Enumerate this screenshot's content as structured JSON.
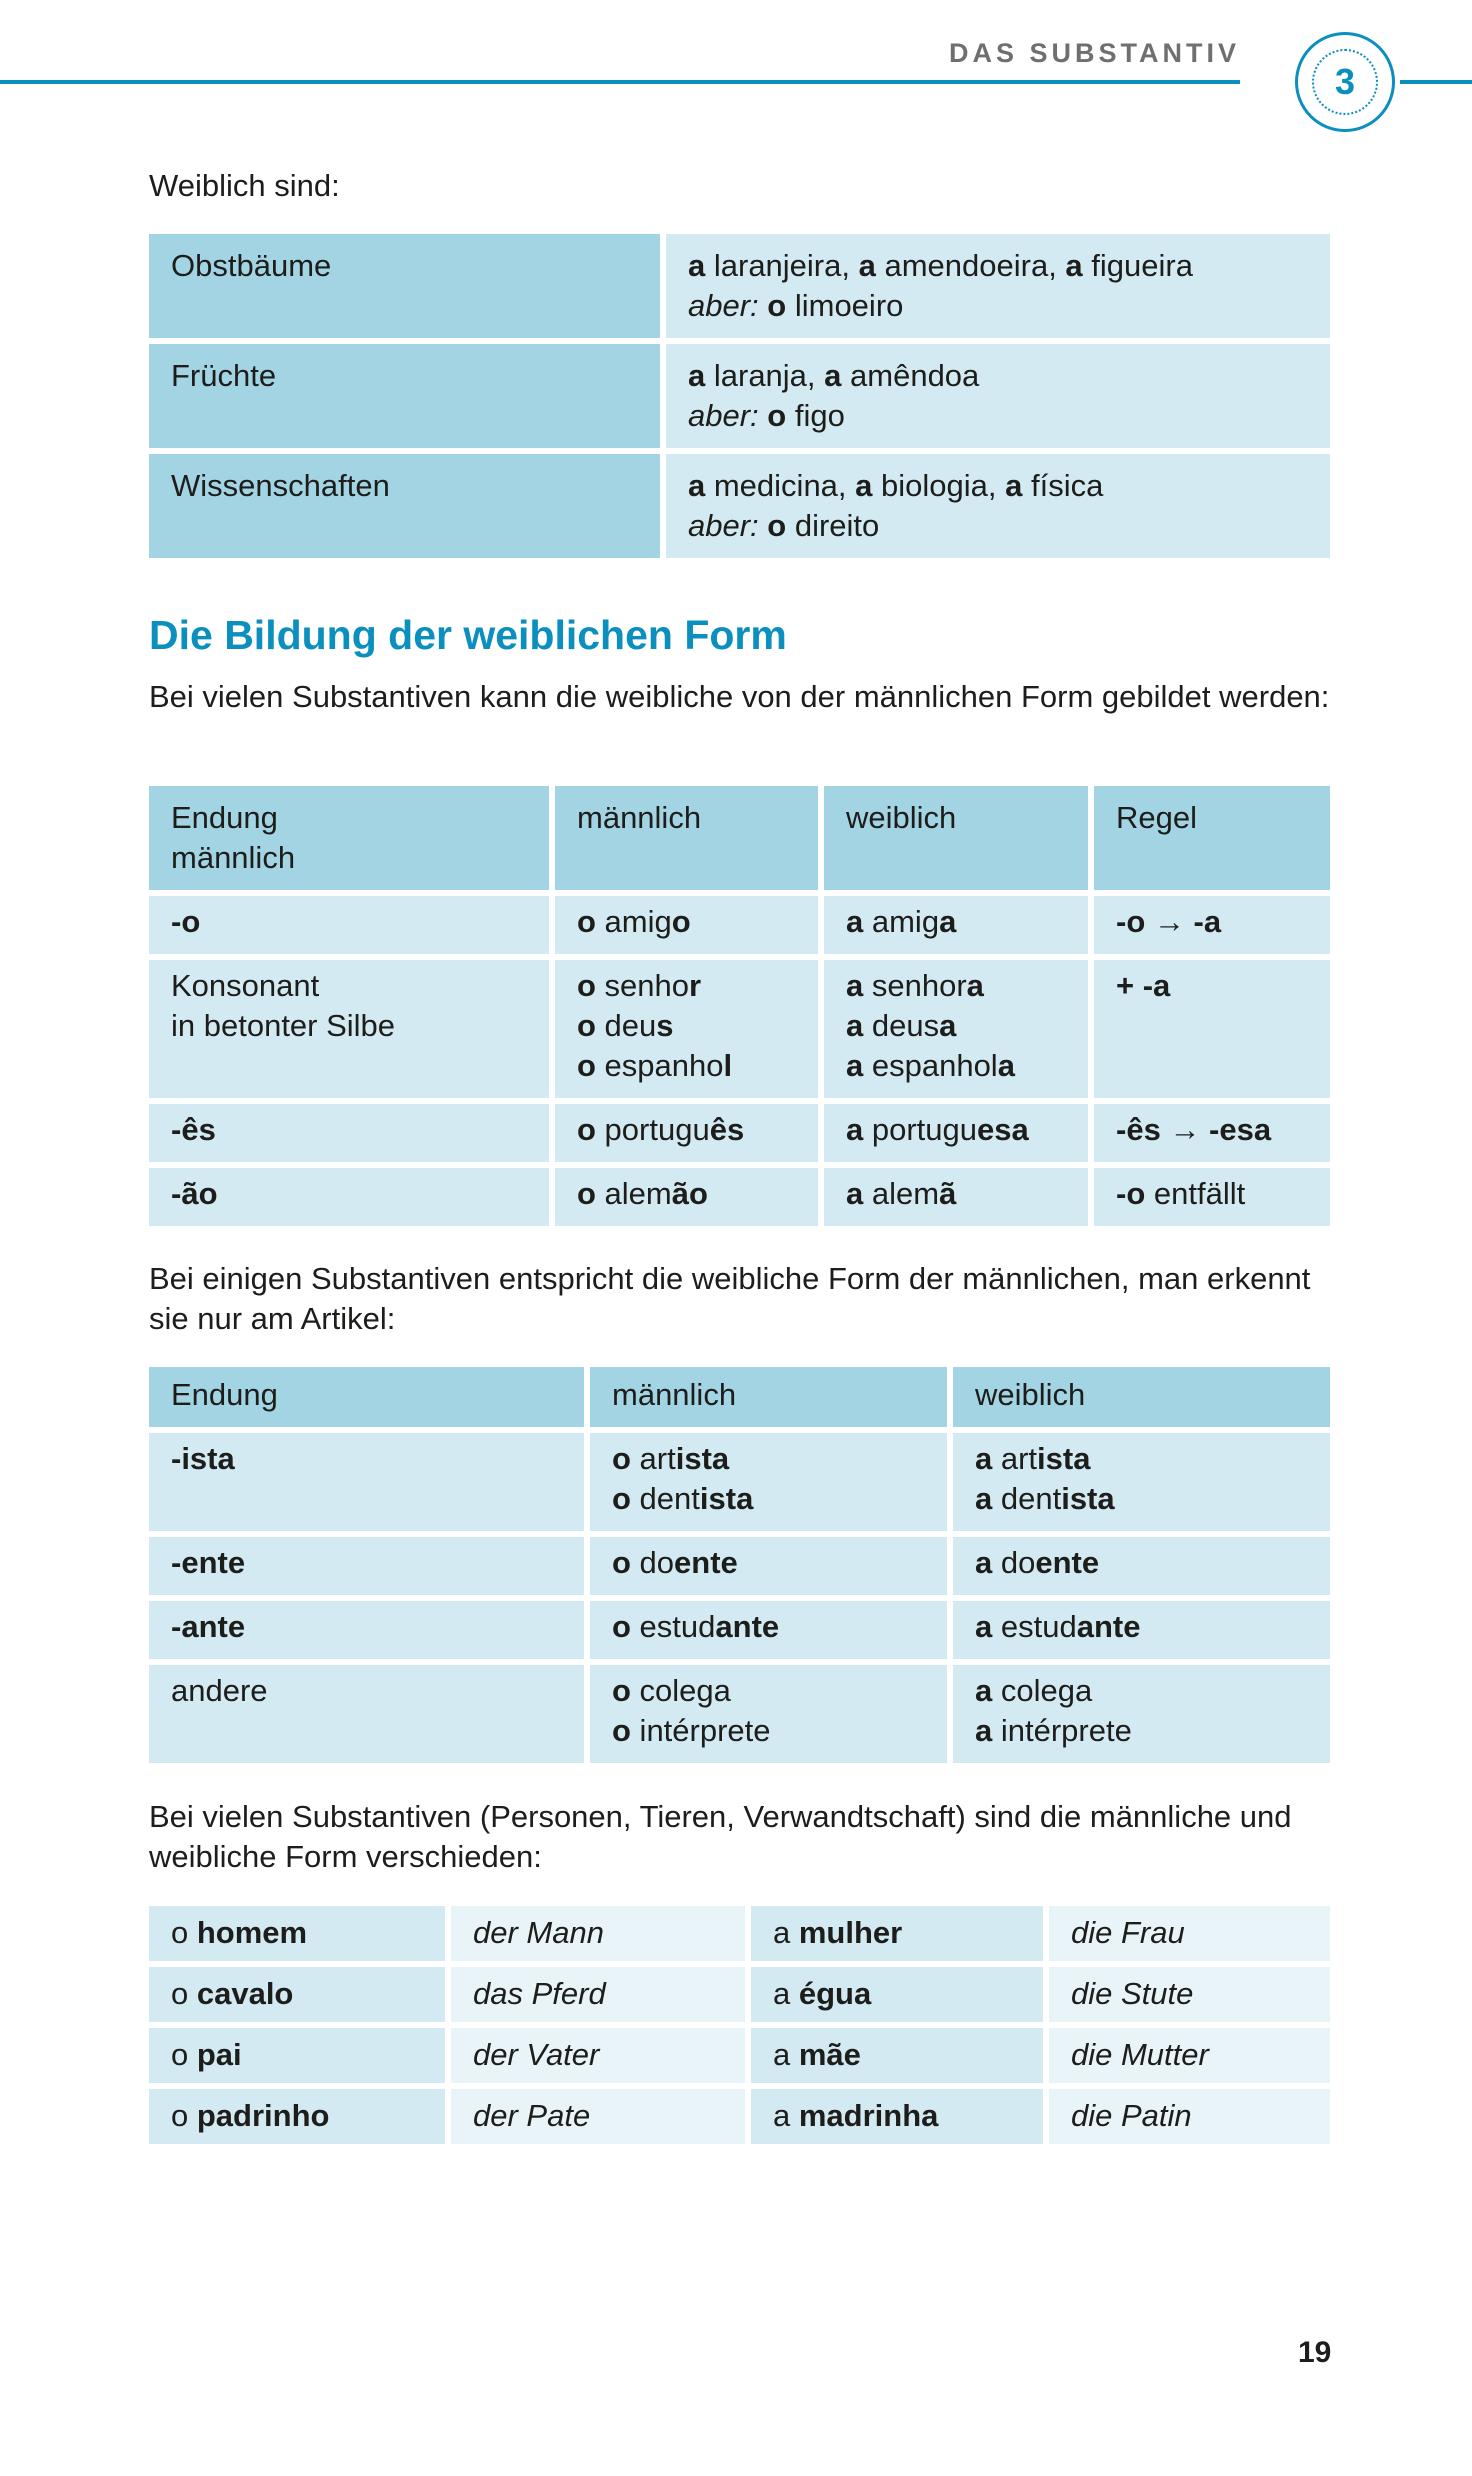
{
  "header": {
    "section_title": "DAS SUBSTANTIV",
    "chapter_number": "3",
    "accent_color": "#0a8fbf"
  },
  "intro": "Weiblich sind:",
  "table1": {
    "rows": [
      {
        "label": "Obstbäume",
        "lines": [
          [
            [
              "a",
              "b"
            ],
            [
              " laranjeira, ",
              ""
            ],
            [
              "a",
              "b"
            ],
            [
              " amendoeira, ",
              ""
            ],
            [
              "a",
              "b"
            ],
            [
              " figueira",
              ""
            ]
          ],
          [
            [
              "aber:",
              "i"
            ],
            [
              " ",
              ""
            ],
            [
              "o",
              "b"
            ],
            [
              " limoeiro",
              ""
            ]
          ]
        ]
      },
      {
        "label": "Früchte",
        "lines": [
          [
            [
              "a",
              "b"
            ],
            [
              " laranja, ",
              ""
            ],
            [
              "a",
              "b"
            ],
            [
              " amêndoa",
              ""
            ]
          ],
          [
            [
              "aber:",
              "i"
            ],
            [
              " ",
              ""
            ],
            [
              "o",
              "b"
            ],
            [
              " figo",
              ""
            ]
          ]
        ]
      },
      {
        "label": "Wissenschaften",
        "lines": [
          [
            [
              "a",
              "b"
            ],
            [
              " medicina, ",
              ""
            ],
            [
              "a",
              "b"
            ],
            [
              " biologia, ",
              ""
            ],
            [
              "a",
              "b"
            ],
            [
              " física",
              ""
            ]
          ],
          [
            [
              "aber:",
              "i"
            ],
            [
              " ",
              ""
            ],
            [
              "o",
              "b"
            ],
            [
              " direito",
              ""
            ]
          ]
        ]
      }
    ]
  },
  "section_heading": "Die Bildung der weiblichen Form",
  "para1": "Bei vielen Substantiven kann die weibliche von der männlichen Form gebildet werden:",
  "table2": {
    "headers": [
      "Endung\nmännlich",
      "männlich",
      "weiblich",
      "Regel"
    ],
    "rows": [
      [
        [
          [
            [
              "-o",
              "b"
            ]
          ]
        ],
        [
          [
            [
              "o",
              "b"
            ],
            [
              " amig",
              ""
            ],
            [
              "o",
              "b"
            ]
          ]
        ],
        [
          [
            [
              "a",
              "b"
            ],
            [
              " amig",
              ""
            ],
            [
              "a",
              "b"
            ]
          ]
        ],
        [
          [
            [
              "-o",
              "b"
            ],
            [
              " → ",
              ""
            ],
            [
              "-a",
              "b"
            ]
          ]
        ]
      ],
      [
        [
          [
            [
              "Konsonant",
              ""
            ]
          ],
          [
            [
              "in betonter Silbe",
              ""
            ]
          ]
        ],
        [
          [
            [
              "o",
              "b"
            ],
            [
              " senho",
              ""
            ],
            [
              "r",
              "b"
            ]
          ],
          [
            [
              "o",
              "b"
            ],
            [
              " deu",
              ""
            ],
            [
              "s",
              "b"
            ]
          ],
          [
            [
              "o",
              "b"
            ],
            [
              " espanho",
              ""
            ],
            [
              "l",
              "b"
            ]
          ]
        ],
        [
          [
            [
              "a",
              "b"
            ],
            [
              " senhor",
              ""
            ],
            [
              "a",
              "b"
            ]
          ],
          [
            [
              "a",
              "b"
            ],
            [
              " deus",
              ""
            ],
            [
              "a",
              "b"
            ]
          ],
          [
            [
              "a",
              "b"
            ],
            [
              " espanhol",
              ""
            ],
            [
              "a",
              "b"
            ]
          ]
        ],
        [
          [
            [
              "+ -a",
              "b"
            ]
          ]
        ]
      ],
      [
        [
          [
            [
              "-ês",
              "b"
            ]
          ]
        ],
        [
          [
            [
              "o",
              "b"
            ],
            [
              " portugu",
              ""
            ],
            [
              "ês",
              "b"
            ]
          ]
        ],
        [
          [
            [
              "a",
              "b"
            ],
            [
              " portugu",
              ""
            ],
            [
              "esa",
              "b"
            ]
          ]
        ],
        [
          [
            [
              "-ês",
              "b"
            ],
            [
              " → ",
              ""
            ],
            [
              "-esa",
              "b"
            ]
          ]
        ]
      ],
      [
        [
          [
            [
              "-ão",
              "b"
            ]
          ]
        ],
        [
          [
            [
              "o",
              "b"
            ],
            [
              " alem",
              ""
            ],
            [
              "ão",
              "b"
            ]
          ]
        ],
        [
          [
            [
              "a",
              "b"
            ],
            [
              " alem",
              ""
            ],
            [
              "ã",
              "b"
            ]
          ]
        ],
        [
          [
            [
              "-o",
              "b"
            ],
            [
              " entfällt",
              ""
            ]
          ]
        ]
      ]
    ]
  },
  "para2": "Bei einigen Substantiven entspricht die weibliche Form der männlichen, man erkennt sie nur am Artikel:",
  "table3": {
    "headers": [
      "Endung",
      "männlich",
      "weiblich"
    ],
    "rows": [
      [
        [
          [
            [
              "-ista",
              "b"
            ]
          ]
        ],
        [
          [
            [
              "o",
              "b"
            ],
            [
              " art",
              ""
            ],
            [
              "ista",
              "b"
            ]
          ],
          [
            [
              "o",
              "b"
            ],
            [
              " dent",
              ""
            ],
            [
              "ista",
              "b"
            ]
          ]
        ],
        [
          [
            [
              "a",
              "b"
            ],
            [
              " art",
              ""
            ],
            [
              "ista",
              "b"
            ]
          ],
          [
            [
              "a",
              "b"
            ],
            [
              " dent",
              ""
            ],
            [
              "ista",
              "b"
            ]
          ]
        ]
      ],
      [
        [
          [
            [
              "-ente",
              "b"
            ]
          ]
        ],
        [
          [
            [
              "o",
              "b"
            ],
            [
              " do",
              ""
            ],
            [
              "ente",
              "b"
            ]
          ]
        ],
        [
          [
            [
              "a",
              "b"
            ],
            [
              " do",
              ""
            ],
            [
              "ente",
              "b"
            ]
          ]
        ]
      ],
      [
        [
          [
            [
              "-ante",
              "b"
            ]
          ]
        ],
        [
          [
            [
              "o",
              "b"
            ],
            [
              " estud",
              ""
            ],
            [
              "ante",
              "b"
            ]
          ]
        ],
        [
          [
            [
              "a",
              "b"
            ],
            [
              " estud",
              ""
            ],
            [
              "ante",
              "b"
            ]
          ]
        ]
      ],
      [
        [
          [
            [
              "andere",
              ""
            ]
          ]
        ],
        [
          [
            [
              "o",
              "b"
            ],
            [
              " colega",
              ""
            ]
          ],
          [
            [
              "o",
              "b"
            ],
            [
              " intérprete",
              ""
            ]
          ]
        ],
        [
          [
            [
              "a",
              "b"
            ],
            [
              " colega",
              ""
            ]
          ],
          [
            [
              "a",
              "b"
            ],
            [
              " intérprete",
              ""
            ]
          ]
        ]
      ]
    ]
  },
  "para3": "Bei vielen Substantiven (Personen, Tieren, Verwandtschaft) sind die männliche und weibliche Form verschieden:",
  "table4": {
    "rows": [
      [
        [
          [
            [
              "o ",
              ""
            ],
            [
              "homem",
              "b"
            ]
          ]
        ],
        [
          [
            [
              "der Mann",
              "i"
            ]
          ]
        ],
        [
          [
            [
              "a ",
              ""
            ],
            [
              "mulher",
              "b"
            ]
          ]
        ],
        [
          [
            [
              "die Frau",
              "i"
            ]
          ]
        ]
      ],
      [
        [
          [
            [
              "o ",
              ""
            ],
            [
              "cavalo",
              "b"
            ]
          ]
        ],
        [
          [
            [
              "das Pferd",
              "i"
            ]
          ]
        ],
        [
          [
            [
              "a ",
              ""
            ],
            [
              "égua",
              "b"
            ]
          ]
        ],
        [
          [
            [
              "die Stute",
              "i"
            ]
          ]
        ]
      ],
      [
        [
          [
            [
              "o ",
              ""
            ],
            [
              "pai",
              "b"
            ]
          ]
        ],
        [
          [
            [
              "der Vater",
              "i"
            ]
          ]
        ],
        [
          [
            [
              "a ",
              ""
            ],
            [
              "mãe",
              "b"
            ]
          ]
        ],
        [
          [
            [
              "die Mutter",
              "i"
            ]
          ]
        ]
      ],
      [
        [
          [
            [
              "o ",
              ""
            ],
            [
              "padrinho",
              "b"
            ]
          ]
        ],
        [
          [
            [
              "der Pate",
              "i"
            ]
          ]
        ],
        [
          [
            [
              "a ",
              ""
            ],
            [
              "madrinha",
              "b"
            ]
          ]
        ],
        [
          [
            [
              "die Patin",
              "i"
            ]
          ]
        ]
      ]
    ]
  },
  "page_number": "19"
}
